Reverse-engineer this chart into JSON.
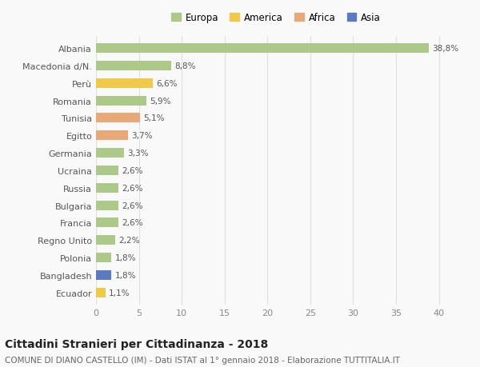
{
  "countries": [
    "Albania",
    "Macedonia d/N.",
    "Perù",
    "Romania",
    "Tunisia",
    "Egitto",
    "Germania",
    "Ucraina",
    "Russia",
    "Bulgaria",
    "Francia",
    "Regno Unito",
    "Polonia",
    "Bangladesh",
    "Ecuador"
  ],
  "values": [
    38.8,
    8.8,
    6.6,
    5.9,
    5.1,
    3.7,
    3.3,
    2.6,
    2.6,
    2.6,
    2.6,
    2.2,
    1.8,
    1.8,
    1.1
  ],
  "labels": [
    "38,8%",
    "8,8%",
    "6,6%",
    "5,9%",
    "5,1%",
    "3,7%",
    "3,3%",
    "2,6%",
    "2,6%",
    "2,6%",
    "2,6%",
    "2,2%",
    "1,8%",
    "1,8%",
    "1,1%"
  ],
  "continents": [
    "Europa",
    "Europa",
    "America",
    "Europa",
    "Africa",
    "Africa",
    "Europa",
    "Europa",
    "Europa",
    "Europa",
    "Europa",
    "Europa",
    "Europa",
    "Asia",
    "America"
  ],
  "colors": {
    "Europa": "#adc98a",
    "America": "#f0c84a",
    "Africa": "#e8a878",
    "Asia": "#5b7abf"
  },
  "legend_colors": {
    "Europa": "#adc98a",
    "America": "#f0c84a",
    "Africa": "#e8a878",
    "Asia": "#5b7abf"
  },
  "xlim": [
    0,
    42
  ],
  "xticks": [
    0,
    5,
    10,
    15,
    20,
    25,
    30,
    35,
    40
  ],
  "background_color": "#f9f9f9",
  "grid_color": "#e0e0e0",
  "title": "Cittadini Stranieri per Cittadinanza - 2018",
  "subtitle": "COMUNE DI DIANO CASTELLO (IM) - Dati ISTAT al 1° gennaio 2018 - Elaborazione TUTTITALIA.IT",
  "title_fontsize": 10,
  "subtitle_fontsize": 7.5,
  "bar_height": 0.55
}
